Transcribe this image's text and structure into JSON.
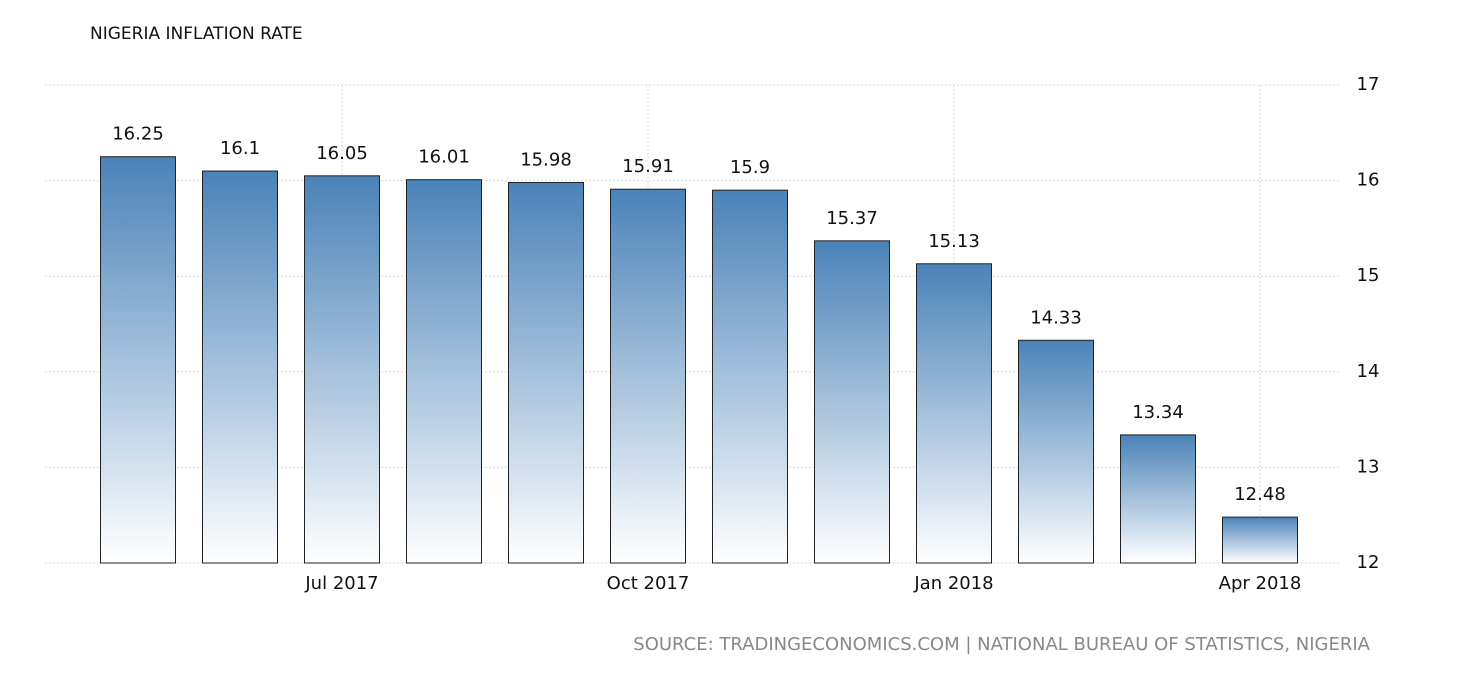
{
  "chart_data": {
    "type": "bar",
    "title": "NIGERIA INFLATION RATE",
    "source": "SOURCE: TRADINGECONOMICS.COM | NATIONAL BUREAU OF STATISTICS, NIGERIA",
    "categories": [
      null,
      null,
      "Jul 2017",
      null,
      null,
      "Oct 2017",
      null,
      null,
      "Jan 2018",
      null,
      null,
      "Apr 2018"
    ],
    "values": [
      16.25,
      16.1,
      16.05,
      16.01,
      15.98,
      15.91,
      15.9,
      15.37,
      15.13,
      14.33,
      13.34,
      12.48
    ],
    "color": "#4a82b8",
    "ylim": [
      12,
      17
    ],
    "yticks": [
      12,
      13,
      14,
      15,
      16,
      17
    ],
    "grid": true
  }
}
